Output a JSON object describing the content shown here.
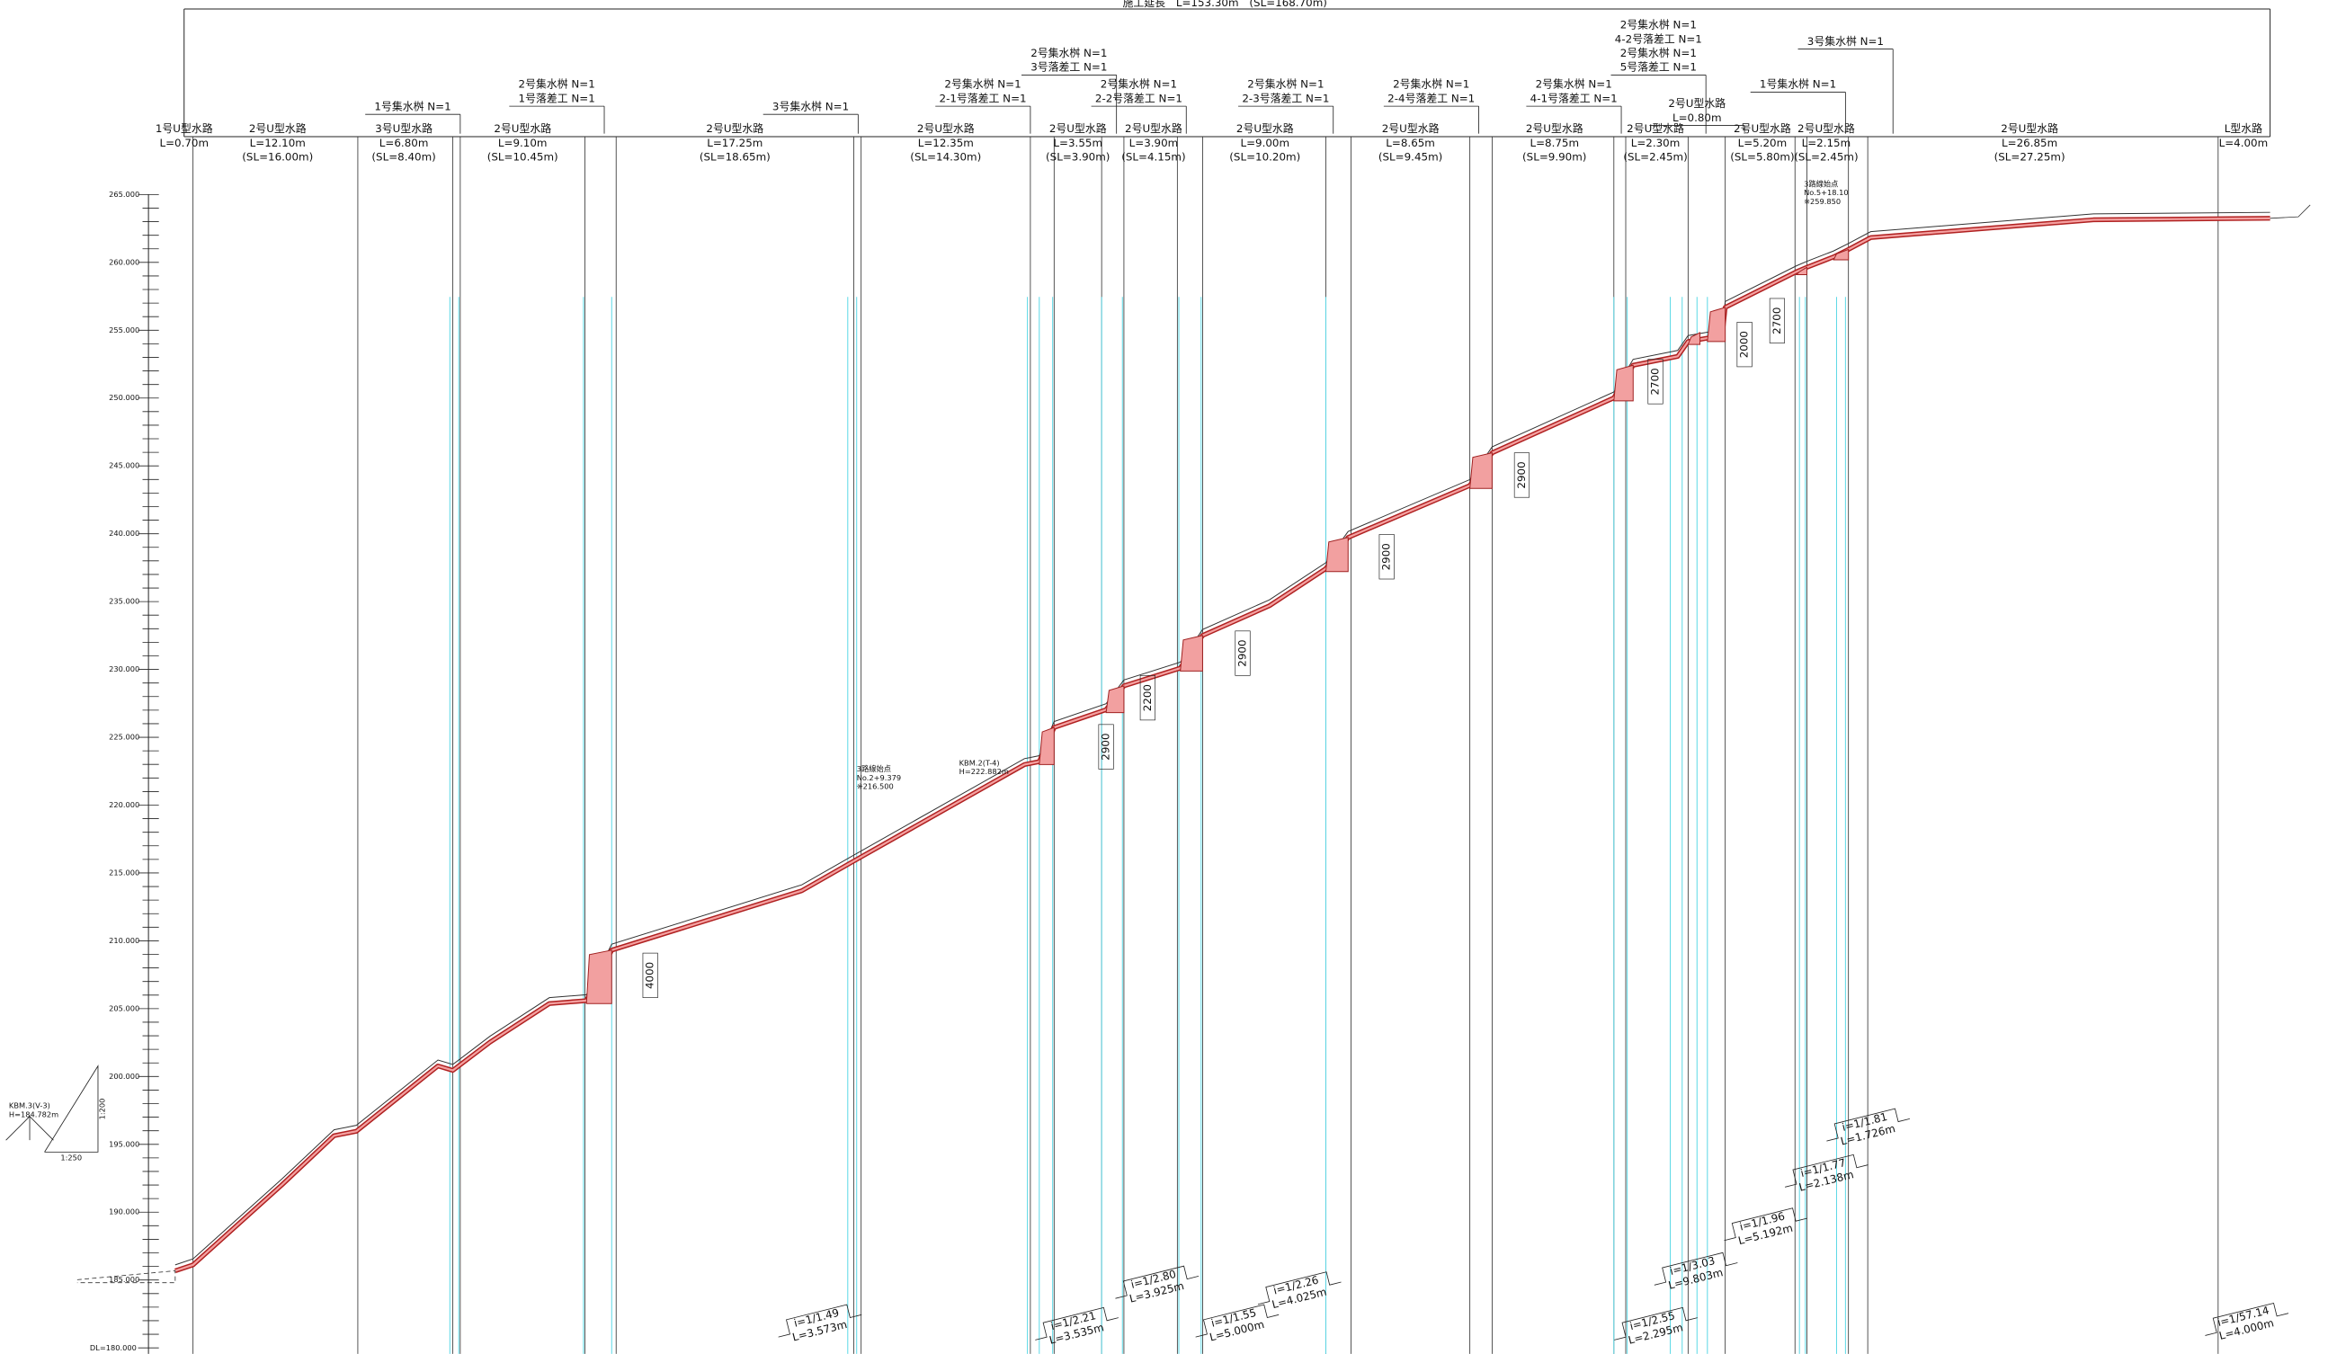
{
  "header": {
    "total_length": "施工延長　L=153.30m　(SL=168.70m)"
  },
  "elevation_axis": {
    "labels": [
      "265.000",
      "260.000",
      "255.000",
      "250.000",
      "245.000",
      "240.000",
      "235.000",
      "230.000",
      "225.000",
      "220.000",
      "215.000",
      "210.000",
      "205.000",
      "200.000",
      "195.000",
      "190.000",
      "185.000"
    ],
    "datum": "DL=180.000"
  },
  "segments": [
    {
      "lines": [
        "1号U型水路",
        "L=0.70m"
      ]
    },
    {
      "lines": [
        "2号U型水路",
        "L=12.10m",
        "(SL=16.00m)"
      ]
    },
    {
      "lines": [
        "3号U型水路",
        "L=6.80m",
        "(SL=8.40m)"
      ]
    },
    {
      "lines": [
        "2号U型水路",
        "L=9.10m",
        "(SL=10.45m)"
      ]
    },
    {
      "lines": [
        "2号U型水路",
        "L=17.25m",
        "(SL=18.65m)"
      ]
    },
    {
      "lines": [
        "2号U型水路",
        "L=12.35m",
        "(SL=14.30m)"
      ]
    },
    {
      "lines": [
        "2号U型水路",
        "L=3.55m",
        "(SL=3.90m)"
      ]
    },
    {
      "lines": [
        "2号U型水路",
        "L=3.90m",
        "(SL=4.15m)"
      ]
    },
    {
      "lines": [
        "2号U型水路",
        "L=9.00m",
        "(SL=10.20m)"
      ]
    },
    {
      "lines": [
        "2号U型水路",
        "L=8.65m",
        "(SL=9.45m)"
      ]
    },
    {
      "lines": [
        "2号U型水路",
        "L=8.75m",
        "(SL=9.90m)"
      ]
    },
    {
      "lines": [
        "2号U型水路",
        "L=2.30m",
        "(SL=2.45m)"
      ]
    },
    {
      "lines": [
        "2号U型水路",
        "L=5.20m",
        "(SL=5.80m)"
      ]
    },
    {
      "lines": [
        "2号U型水路",
        "L=2.15m",
        "(SL=2.45m)"
      ]
    },
    {
      "lines": [
        "2号U型水路",
        "L=26.85m",
        "(SL=27.25m)"
      ]
    },
    {
      "lines": [
        "L型水路",
        "L=4.00m"
      ]
    }
  ],
  "structures": [
    {
      "lines": [
        "1号集水桝 N=1"
      ]
    },
    {
      "lines": [
        "2号集水桝 N=1",
        "1号落差工 N=1"
      ]
    },
    {
      "lines": [
        "3号集水桝 N=1"
      ]
    },
    {
      "lines": [
        "2号集水桝 N=1",
        "2-1号落差工 N=1"
      ]
    },
    {
      "lines": [
        "2号集水桝 N=1",
        "3号落差工 N=1"
      ]
    },
    {
      "lines": [
        "2号集水桝 N=1",
        "2-2号落差工 N=1"
      ]
    },
    {
      "lines": [
        "2号集水桝 N=1",
        "2-3号落差工 N=1"
      ]
    },
    {
      "lines": [
        "2号集水桝 N=1",
        "2-4号落差工 N=1"
      ]
    },
    {
      "lines": [
        "2号集水桝 N=1",
        "4-1号落差工 N=1"
      ]
    },
    {
      "lines": [
        "2号集水桝 N=1",
        "4-2号落差工 N=1",
        "2号集水桝 N=1",
        "5号落差工 N=1"
      ]
    },
    {
      "lines": [
        "2号U型水路",
        "L=0.80m"
      ]
    },
    {
      "lines": [
        "3号集水桝 N=1"
      ]
    },
    {
      "lines": [
        "1号集水桝 N=1"
      ]
    }
  ],
  "gradients": [
    {
      "lines": [
        "i=1/1.49",
        "L=3.573m"
      ]
    },
    {
      "lines": [
        "i=1/2.21",
        "L=3.535m"
      ]
    },
    {
      "lines": [
        "i=1/2.80",
        "L=3.925m"
      ]
    },
    {
      "lines": [
        "i=1/1.55",
        "L=5.000m"
      ]
    },
    {
      "lines": [
        "i=1/2.26",
        "L=4.025m"
      ]
    },
    {
      "lines": [
        "i=1/2.55",
        "L=2.295m"
      ]
    },
    {
      "lines": [
        "i=1/3.03",
        "L=9.803m"
      ]
    },
    {
      "lines": [
        "i=1/1.96",
        "L=5.192m"
      ]
    },
    {
      "lines": [
        "i=1/1.77",
        "L=2.138m"
      ]
    },
    {
      "lines": [
        "i=1/1.81",
        "L=1.726m"
      ]
    },
    {
      "lines": [
        "i=1/57.14",
        "L=4.000m"
      ]
    }
  ],
  "drop_heights": [
    "4000",
    "2900",
    "2200",
    "2900",
    "2900",
    "2900",
    "2700",
    "2000",
    "2700"
  ],
  "notes": [
    {
      "lines": [
        "KBM.3(V-3)",
        "H=184.782m"
      ]
    },
    {
      "lines": [
        "KBM.2(T-4)",
        "H=222.882m"
      ]
    },
    {
      "lines": [
        "3路線始点",
        "No.2+9.379",
        "※216.500"
      ]
    },
    {
      "lines": [
        "3路線始点",
        "No.5+18.10",
        "※259.850"
      ]
    }
  ],
  "scale": {
    "vertical": "1:200",
    "horizontal": "1:250"
  }
}
